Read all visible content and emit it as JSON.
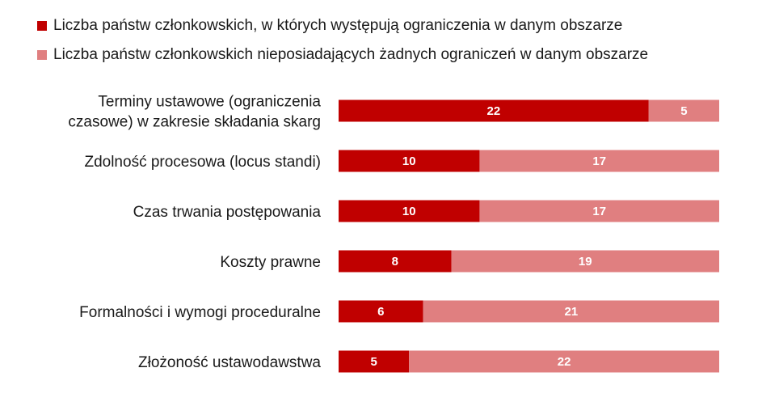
{
  "chart_data": {
    "type": "bar",
    "orientation": "horizontal",
    "stacked": true,
    "categories": [
      [
        "Terminy ustawowe (ograniczenia",
        "czasowe) w zakresie składania skarg"
      ],
      [
        "Zdolność procesowa (locus standi)"
      ],
      [
        "Czas trwania postępowania"
      ],
      [
        "Koszty prawne"
      ],
      [
        "Formalności i wymogi proceduralne"
      ],
      [
        "Złożoność ustawodawstwa"
      ]
    ],
    "series": [
      {
        "name": "Liczba państw członkowskich, w których występują  ograniczenia w  danym obszarze",
        "color": "#c00000",
        "values": [
          22,
          10,
          10,
          8,
          6,
          5
        ]
      },
      {
        "name": "Liczba państw członkowskich nieposiadających żadnych ograniczeń w danym obszarze",
        "color": "#e07f80",
        "values": [
          5,
          17,
          17,
          19,
          21,
          22
        ]
      }
    ],
    "xlim": [
      0,
      27
    ],
    "grid": false,
    "legend_position": "top-left"
  }
}
